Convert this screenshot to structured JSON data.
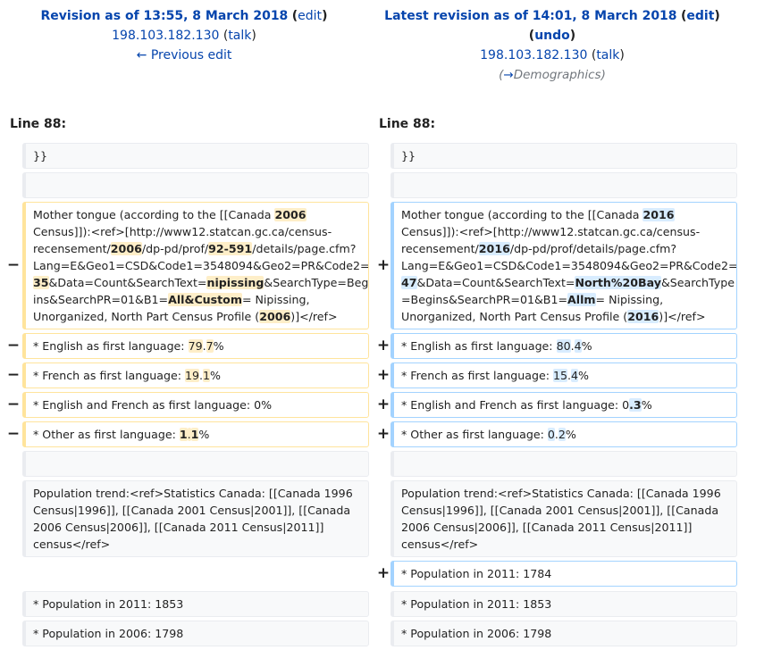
{
  "left_header": {
    "title": "Revision as of 13:55, 8 March 2018",
    "edit_link": "edit",
    "user": "198.103.182.130",
    "talk_link": "talk",
    "prev_link": "← Previous edit"
  },
  "right_header": {
    "title": "Latest revision as of 14:01, 8 March 2018",
    "edit_link": "edit",
    "undo_link": "undo",
    "user": "198.103.182.130",
    "talk_link": "talk",
    "summary_arrow": "→",
    "summary_text": "Demographics"
  },
  "line_label": "Line 88:",
  "markers": {
    "minus": "−",
    "plus": "+"
  },
  "rows": {
    "close_braces": "}}",
    "mother_tongue_left": [
      "Mother tongue (according to the [[Canada ",
      "2006",
      "",
      "Census]]):<ref>[http://www12.statcan.gc.ca/census-",
      "recensement/",
      "2006",
      "/dp-pd/prof/",
      "92-591",
      "/details/page.cfm?",
      "Lang=E&Geo1=CSD&Code1=3548094&Geo2=PR&Code2=",
      "35",
      "&Data=Count&SearchText=",
      "nipissing",
      "&SearchType=Beg",
      "ins&SearchPR=01&B1=",
      "All&Custom",
      "= Nipissing,",
      "Unorganized, North Part Census Profile (",
      "2006",
      ")]</ref>"
    ],
    "mother_tongue_right": [
      "Mother tongue (according to the [[Canada ",
      "2016",
      "",
      "Census]]):<ref>[http://www12.statcan.gc.ca/census-",
      "recensement/",
      "2016",
      "/dp-pd/prof/details/page.cfm?",
      "Lang=E&Geo1=CSD&Code1=3548094&Geo2=PR&Code2=",
      "47",
      "&Data=Count&SearchText=",
      "North%20Bay",
      "&SearchType",
      "=Begins&SearchPR=01&B1=",
      "Allm",
      "= Nipissing,",
      "Unorganized, North Part Census Profile (",
      "2016",
      ")]</ref>"
    ],
    "english_left": [
      "* English as first language: ",
      "79",
      ".",
      "7",
      "%"
    ],
    "english_right": [
      "* English as first language: ",
      "80",
      ".",
      "4",
      "%"
    ],
    "french_left": [
      "* French as first language: ",
      "19",
      ".",
      "1",
      "%"
    ],
    "french_right": [
      "* French as first language: ",
      "15",
      ".",
      "4",
      "%"
    ],
    "engfr_left": "* English and French as first language: 0%",
    "engfr_right": [
      "* English and French as first language: 0",
      ".3",
      "%"
    ],
    "other_left": [
      "* Other as first language: ",
      "1",
      ".",
      "1",
      "%"
    ],
    "other_right": [
      "* Other as first language: ",
      "0",
      ".",
      "2",
      "%"
    ],
    "pop_trend": [
      "Population trend:<ref>Statistics Canada: [[Canada 1996",
      "Census|1996]], [[Canada 2001 Census|2001]], [[Canada",
      "2006 Census|2006]], [[Canada 2011 Census|2011]]",
      "census</ref>"
    ],
    "pop_2011_added": "* Population in 2011: 1784",
    "pop_2011": "* Population in 2011: 1853",
    "pop_2006": "* Population in 2006: 1798"
  }
}
